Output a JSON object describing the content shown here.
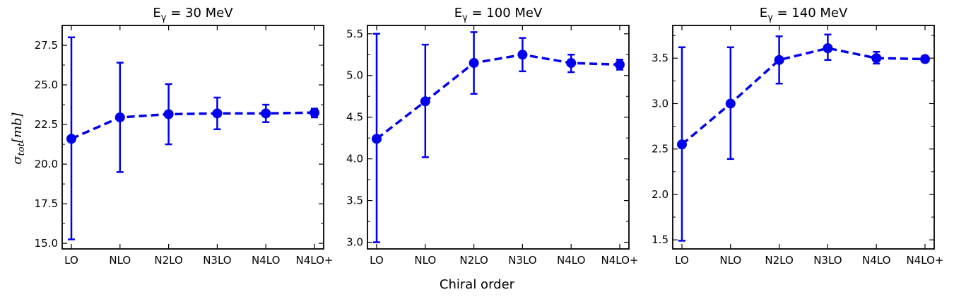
{
  "figure": {
    "xlabel": "Chiral order",
    "ylabel": "σ",
    "ylabel_sub": "tot",
    "ylabel_unit": "[mb]",
    "color": "#0000ee"
  },
  "chart_data": [
    {
      "type": "line",
      "title_prefix": "E",
      "title_sub": "γ",
      "title_rest": " = 30 MeV",
      "categories": [
        "LO",
        "NLO",
        "N2LO",
        "N3LO",
        "N4LO",
        "N4LO+"
      ],
      "values": [
        21.6,
        22.95,
        23.15,
        23.2,
        23.2,
        23.25
      ],
      "err_low": [
        15.25,
        19.5,
        21.25,
        22.2,
        22.65,
        22.95
      ],
      "err_high": [
        28.0,
        26.4,
        25.05,
        24.2,
        23.75,
        23.5
      ],
      "ylim": [
        14.65,
        28.75
      ],
      "yticks": [
        15.0,
        17.5,
        20.0,
        22.5,
        25.0,
        27.5
      ],
      "ytick_labels": [
        "15.0",
        "17.5",
        "20.0",
        "22.5",
        "25.0",
        "27.5"
      ]
    },
    {
      "type": "line",
      "title_prefix": "E",
      "title_sub": "γ",
      "title_rest": " = 100 MeV",
      "categories": [
        "LO",
        "NLO",
        "N2LO",
        "N3LO",
        "N4LO",
        "N4LO+"
      ],
      "values": [
        4.24,
        4.69,
        5.15,
        5.25,
        5.15,
        5.13
      ],
      "err_low": [
        3.0,
        4.02,
        4.78,
        5.05,
        5.04,
        5.07
      ],
      "err_high": [
        5.5,
        5.37,
        5.52,
        5.45,
        5.25,
        5.19
      ],
      "ylim": [
        2.92,
        5.6
      ],
      "yticks": [
        3.0,
        3.5,
        4.0,
        4.5,
        5.0,
        5.5
      ],
      "ytick_labels": [
        "3.0",
        "3.5",
        "4.0",
        "4.5",
        "5.0",
        "5.5"
      ]
    },
    {
      "type": "line",
      "title_prefix": "E",
      "title_sub": "γ",
      "title_rest": " = 140 MeV",
      "categories": [
        "LO",
        "NLO",
        "N2LO",
        "N3LO",
        "N4LO",
        "N4LO+"
      ],
      "values": [
        2.55,
        3.0,
        3.48,
        3.61,
        3.5,
        3.49
      ],
      "err_low": [
        1.49,
        2.39,
        3.22,
        3.48,
        3.44,
        3.46
      ],
      "err_high": [
        3.62,
        3.62,
        3.74,
        3.76,
        3.57,
        3.52
      ],
      "ylim": [
        1.4,
        3.86
      ],
      "yticks": [
        1.5,
        2.0,
        2.5,
        3.0,
        3.5
      ],
      "ytick_labels": [
        "1.5",
        "2.0",
        "2.5",
        "3.0",
        "3.5"
      ]
    }
  ]
}
